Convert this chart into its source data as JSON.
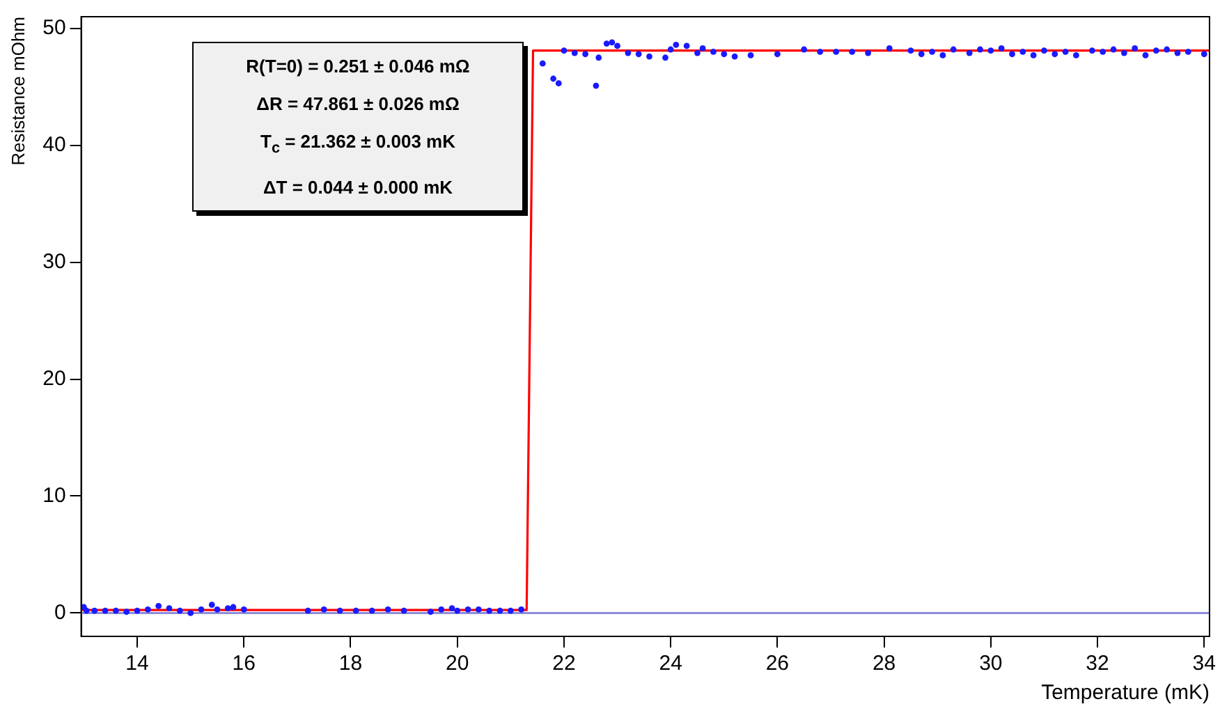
{
  "chart_data": {
    "type": "scatter",
    "xlabel": "Temperature (mK)",
    "ylabel": "Resistance mOhm",
    "annotations": [
      "R(T=0) = 0.251 ± 0.046 mΩ",
      "ΔR = 47.861 ± 0.026 mΩ",
      "T$_{c}$ = 21.362 ± 0.003 mK",
      "ΔT = 0.044 ± 0.000 mK"
    ],
    "xlim": [
      12.95,
      34.1
    ],
    "xticks": [
      14,
      16,
      18,
      20,
      22,
      24,
      26,
      28,
      30,
      32,
      34
    ],
    "ylim": [
      -2,
      51
    ],
    "yticks": [
      0,
      10,
      20,
      30,
      40,
      50
    ],
    "grid": false,
    "legend": false,
    "marker": "circle",
    "ref_lines": [
      {
        "axis": "y",
        "value": 0,
        "color": "#8c8cd9"
      }
    ],
    "series": [
      {
        "type": "scatter",
        "color": "#1a1aff",
        "x": [
          13.0,
          13.05,
          13.2,
          13.4,
          13.6,
          13.8,
          14.0,
          14.2,
          14.4,
          14.6,
          14.8,
          15.0,
          15.2,
          15.4,
          15.5,
          15.7,
          15.8,
          16.0,
          17.2,
          17.5,
          17.8,
          18.1,
          18.4,
          18.7,
          19.0,
          19.5,
          19.7,
          19.9,
          20.0,
          20.2,
          20.4,
          20.6,
          20.8,
          21.0,
          21.2,
          21.6,
          21.8,
          21.9,
          22.0,
          22.2,
          22.4,
          22.6,
          22.65,
          22.8,
          22.9,
          23.0,
          23.2,
          23.4,
          23.6,
          23.9,
          24.0,
          24.1,
          24.3,
          24.5,
          24.6,
          24.8,
          25.0,
          25.2,
          25.5,
          26.0,
          26.5,
          26.8,
          27.1,
          27.4,
          27.7,
          28.1,
          28.5,
          28.7,
          28.9,
          29.1,
          29.3,
          29.6,
          29.8,
          30.0,
          30.2,
          30.4,
          30.6,
          30.8,
          31.0,
          31.2,
          31.4,
          31.6,
          31.9,
          32.1,
          32.3,
          32.5,
          32.7,
          32.9,
          33.1,
          33.3,
          33.5,
          33.7,
          34.0
        ],
        "values": [
          0.5,
          0.2,
          0.2,
          0.2,
          0.2,
          0.1,
          0.2,
          0.3,
          0.6,
          0.4,
          0.2,
          0.0,
          0.3,
          0.7,
          0.3,
          0.4,
          0.5,
          0.3,
          0.2,
          0.3,
          0.2,
          0.2,
          0.2,
          0.3,
          0.2,
          0.1,
          0.3,
          0.4,
          0.2,
          0.3,
          0.3,
          0.2,
          0.2,
          0.2,
          0.3,
          47.0,
          45.7,
          45.3,
          48.1,
          47.9,
          47.8,
          45.1,
          47.5,
          48.7,
          48.8,
          48.5,
          47.9,
          47.8,
          47.6,
          47.5,
          48.2,
          48.6,
          48.5,
          47.9,
          48.3,
          48.0,
          47.8,
          47.6,
          47.7,
          47.8,
          48.2,
          48.0,
          48.0,
          48.0,
          47.9,
          48.3,
          48.1,
          47.8,
          48.0,
          47.7,
          48.2,
          47.9,
          48.2,
          48.1,
          48.3,
          47.8,
          48.0,
          47.7,
          48.1,
          47.8,
          48.0,
          47.7,
          48.1,
          48.0,
          48.2,
          47.9,
          48.3,
          47.7,
          48.1,
          48.2,
          47.9,
          48.0,
          47.8
        ]
      },
      {
        "type": "line",
        "color": "#ff0000",
        "marker": "none",
        "x": [
          12.95,
          21.3,
          21.42,
          34.1
        ],
        "values": [
          0.25,
          0.25,
          48.1,
          48.1
        ]
      }
    ]
  }
}
